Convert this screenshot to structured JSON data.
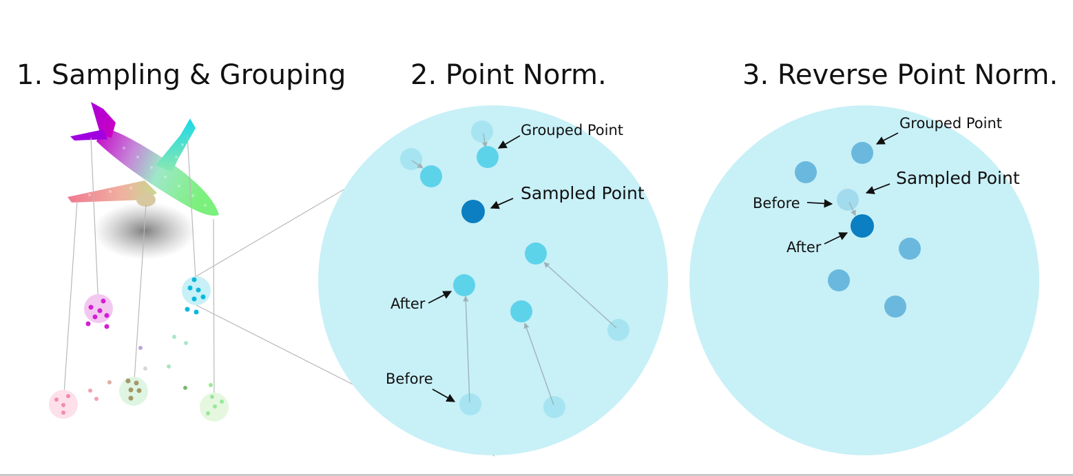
{
  "titles": {
    "step1": "1. Sampling & Grouping",
    "step2": "2. Point Norm.",
    "step3": "3. Reverse Point Norm."
  },
  "panel2": {
    "grouped_point": "Grouped Point",
    "sampled_point": "Sampled Point",
    "after": "After",
    "before": "Before"
  },
  "panel3": {
    "grouped_point": "Grouped Point",
    "sampled_point": "Sampled Point",
    "before": "Before",
    "after": "After"
  },
  "colors": {
    "big_circle": "#c8f0f7",
    "grouped_point_p2": "#5dd3ea",
    "grouped_point_before_p2": "#a6e4f1",
    "sampled_point": "#0b7fc1",
    "grouped_point_p3": "#6ab8dd",
    "sampled_before_p3": "#a3dbee",
    "connector_line": "#b8b8b8",
    "arrow": "#111111",
    "move_arrow": "#9db3b7"
  }
}
